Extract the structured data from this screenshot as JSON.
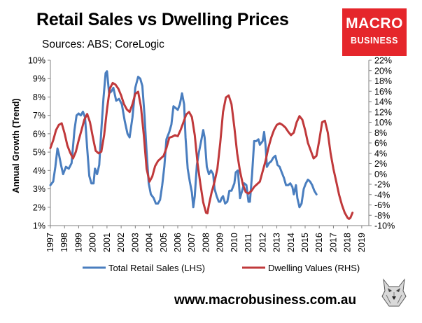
{
  "header": {
    "title": "Retail Sales vs Dwelling Prices",
    "subtitle": "Sources: ABS; CoreLogic"
  },
  "logo": {
    "line1": "MACRO",
    "line2": "BUSINESS",
    "color": "#e5262b"
  },
  "footer": {
    "url": "www.macrobusiness.com.au"
  },
  "chart_data": {
    "type": "line",
    "ylabel": "Annual Growth (Trend)",
    "y_left": {
      "lim": [
        1,
        10
      ],
      "ticks": [
        "1%",
        "2%",
        "3%",
        "4%",
        "5%",
        "6%",
        "7%",
        "8%",
        "9%",
        "10%"
      ]
    },
    "y_right": {
      "lim": [
        -10,
        22
      ],
      "ticks": [
        "-10%",
        "-8%",
        "-6%",
        "-4%",
        "-2%",
        "0%",
        "2%",
        "4%",
        "6%",
        "8%",
        "10%",
        "12%",
        "14%",
        "16%",
        "18%",
        "20%",
        "22%"
      ]
    },
    "x_ticks": [
      "1997",
      "1998",
      "1999",
      "2000",
      "2001",
      "2002",
      "2003",
      "2004",
      "2005",
      "2006",
      "2007",
      "2008",
      "2009",
      "2010",
      "2011",
      "2012",
      "2013",
      "2014",
      "2015",
      "2016",
      "2017",
      "2018",
      "2019"
    ],
    "grid": "none",
    "legend": "bottom",
    "series": [
      {
        "name": "Total Retail Sales (LHS)",
        "axis": "left",
        "color": "#4a7ebf",
        "points": [
          [
            1997.0,
            3.2
          ],
          [
            1997.2,
            3.4
          ],
          [
            1997.35,
            4.2
          ],
          [
            1997.5,
            5.2
          ],
          [
            1997.6,
            4.9
          ],
          [
            1997.75,
            4.3
          ],
          [
            1997.9,
            3.8
          ],
          [
            1998.1,
            4.2
          ],
          [
            1998.3,
            4.1
          ],
          [
            1998.5,
            4.4
          ],
          [
            1998.7,
            6.2
          ],
          [
            1998.85,
            7.0
          ],
          [
            1999.0,
            7.1
          ],
          [
            1999.15,
            7.0
          ],
          [
            1999.3,
            7.2
          ],
          [
            1999.45,
            6.9
          ],
          [
            1999.6,
            5.2
          ],
          [
            1999.75,
            3.7
          ],
          [
            1999.9,
            3.3
          ],
          [
            2000.05,
            3.3
          ],
          [
            2000.15,
            4.1
          ],
          [
            2000.3,
            3.8
          ],
          [
            2000.45,
            4.3
          ],
          [
            2000.6,
            6.2
          ],
          [
            2000.75,
            7.9
          ],
          [
            2000.9,
            9.3
          ],
          [
            2001.0,
            9.4
          ],
          [
            2001.15,
            8.2
          ],
          [
            2001.3,
            8.3
          ],
          [
            2001.45,
            8.5
          ],
          [
            2001.65,
            7.8
          ],
          [
            2001.85,
            7.9
          ],
          [
            2002.05,
            7.6
          ],
          [
            2002.25,
            6.7
          ],
          [
            2002.45,
            6.0
          ],
          [
            2002.6,
            5.8
          ],
          [
            2002.8,
            6.9
          ],
          [
            2003.0,
            8.5
          ],
          [
            2003.2,
            9.1
          ],
          [
            2003.35,
            9.0
          ],
          [
            2003.5,
            8.6
          ],
          [
            2003.65,
            7.0
          ],
          [
            2003.8,
            5.0
          ],
          [
            2003.95,
            3.3
          ],
          [
            2004.1,
            2.7
          ],
          [
            2004.3,
            2.5
          ],
          [
            2004.45,
            2.2
          ],
          [
            2004.6,
            2.2
          ],
          [
            2004.75,
            2.4
          ],
          [
            2004.9,
            3.2
          ],
          [
            2005.05,
            4.2
          ],
          [
            2005.2,
            5.7
          ],
          [
            2005.4,
            6.1
          ],
          [
            2005.55,
            6.5
          ],
          [
            2005.7,
            7.5
          ],
          [
            2005.85,
            7.4
          ],
          [
            2006.0,
            7.3
          ],
          [
            2006.15,
            7.6
          ],
          [
            2006.3,
            8.2
          ],
          [
            2006.45,
            7.6
          ],
          [
            2006.55,
            5.8
          ],
          [
            2006.7,
            4.1
          ],
          [
            2006.85,
            3.4
          ],
          [
            2007.0,
            2.8
          ],
          [
            2007.1,
            2.0
          ],
          [
            2007.2,
            2.6
          ],
          [
            2007.35,
            4.3
          ],
          [
            2007.5,
            5.0
          ],
          [
            2007.65,
            5.6
          ],
          [
            2007.8,
            6.2
          ],
          [
            2007.9,
            5.8
          ],
          [
            2008.05,
            4.2
          ],
          [
            2008.2,
            3.8
          ],
          [
            2008.35,
            4.0
          ],
          [
            2008.5,
            3.8
          ],
          [
            2008.6,
            3.0
          ],
          [
            2008.75,
            2.6
          ],
          [
            2008.9,
            2.3
          ],
          [
            2009.0,
            2.3
          ],
          [
            2009.1,
            2.5
          ],
          [
            2009.2,
            2.6
          ],
          [
            2009.35,
            2.2
          ],
          [
            2009.5,
            2.3
          ],
          [
            2009.65,
            2.9
          ],
          [
            2009.8,
            2.9
          ],
          [
            2010.0,
            3.3
          ],
          [
            2010.1,
            3.9
          ],
          [
            2010.25,
            4.0
          ],
          [
            2010.4,
            2.5
          ],
          [
            2010.55,
            2.9
          ],
          [
            2010.7,
            3.3
          ],
          [
            2010.85,
            3.2
          ],
          [
            2011.0,
            2.3
          ],
          [
            2011.1,
            2.3
          ],
          [
            2011.25,
            3.8
          ],
          [
            2011.4,
            5.6
          ],
          [
            2011.55,
            5.6
          ],
          [
            2011.7,
            5.7
          ],
          [
            2011.8,
            5.4
          ],
          [
            2011.9,
            5.5
          ],
          [
            2012.0,
            5.6
          ],
          [
            2012.1,
            6.1
          ],
          [
            2012.2,
            5.4
          ],
          [
            2012.3,
            4.2
          ],
          [
            2012.45,
            4.4
          ],
          [
            2012.6,
            4.5
          ],
          [
            2012.75,
            4.7
          ],
          [
            2012.9,
            4.8
          ],
          [
            2013.05,
            4.3
          ],
          [
            2013.2,
            4.2
          ],
          [
            2013.35,
            3.9
          ],
          [
            2013.5,
            3.6
          ],
          [
            2013.65,
            3.2
          ],
          [
            2013.8,
            3.2
          ],
          [
            2013.95,
            3.3
          ],
          [
            2014.1,
            3.1
          ],
          [
            2014.2,
            2.7
          ],
          [
            2014.35,
            3.2
          ],
          [
            2014.45,
            2.5
          ],
          [
            2014.6,
            2.0
          ],
          [
            2014.75,
            2.2
          ],
          [
            2014.9,
            3.0
          ],
          [
            2015.05,
            3.3
          ],
          [
            2015.2,
            3.5
          ],
          [
            2015.35,
            3.4
          ],
          [
            2015.5,
            3.2
          ],
          [
            2015.65,
            2.9
          ],
          [
            2015.8,
            2.7
          ]
        ]
      },
      {
        "name": "Dwelling Values (RHS)",
        "axis": "right",
        "color": "#c0393b",
        "points": [
          [
            1997.0,
            5.0
          ],
          [
            1997.2,
            6.5
          ],
          [
            1997.4,
            8.5
          ],
          [
            1997.6,
            9.5
          ],
          [
            1997.8,
            9.8
          ],
          [
            1998.0,
            7.9
          ],
          [
            1998.2,
            5.5
          ],
          [
            1998.4,
            4.1
          ],
          [
            1998.6,
            3.0
          ],
          [
            1998.8,
            4.3
          ],
          [
            1999.0,
            6.5
          ],
          [
            1999.2,
            8.5
          ],
          [
            1999.4,
            10.5
          ],
          [
            1999.6,
            11.6
          ],
          [
            1999.8,
            10.0
          ],
          [
            2000.0,
            7.1
          ],
          [
            2000.2,
            4.5
          ],
          [
            2000.4,
            4.0
          ],
          [
            2000.6,
            4.3
          ],
          [
            2000.8,
            7.5
          ],
          [
            2001.0,
            12.5
          ],
          [
            2001.2,
            16.5
          ],
          [
            2001.4,
            17.6
          ],
          [
            2001.6,
            17.3
          ],
          [
            2001.8,
            16.5
          ],
          [
            2002.0,
            15.2
          ],
          [
            2002.2,
            13.5
          ],
          [
            2002.4,
            12.5
          ],
          [
            2002.6,
            12.0
          ],
          [
            2002.8,
            13.5
          ],
          [
            2003.0,
            15.5
          ],
          [
            2003.2,
            15.9
          ],
          [
            2003.4,
            13.0
          ],
          [
            2003.6,
            7.5
          ],
          [
            2003.8,
            1.0
          ],
          [
            2004.0,
            -1.5
          ],
          [
            2004.2,
            -0.5
          ],
          [
            2004.4,
            1.5
          ],
          [
            2004.6,
            2.5
          ],
          [
            2004.8,
            3.0
          ],
          [
            2005.0,
            3.5
          ],
          [
            2005.2,
            5.0
          ],
          [
            2005.4,
            7.0
          ],
          [
            2005.6,
            7.2
          ],
          [
            2005.8,
            7.5
          ],
          [
            2006.0,
            7.3
          ],
          [
            2006.2,
            8.5
          ],
          [
            2006.4,
            10.0
          ],
          [
            2006.6,
            11.5
          ],
          [
            2006.8,
            12.0
          ],
          [
            2007.0,
            11.0
          ],
          [
            2007.2,
            7.5
          ],
          [
            2007.4,
            2.0
          ],
          [
            2007.6,
            -2.0
          ],
          [
            2007.8,
            -5.5
          ],
          [
            2008.0,
            -7.5
          ],
          [
            2008.1,
            -7.6
          ],
          [
            2008.2,
            -6.0
          ],
          [
            2008.4,
            -3.5
          ],
          [
            2008.6,
            -1.5
          ],
          [
            2008.8,
            1.0
          ],
          [
            2009.0,
            6.0
          ],
          [
            2009.2,
            12.0
          ],
          [
            2009.4,
            14.8
          ],
          [
            2009.6,
            15.2
          ],
          [
            2009.8,
            13.5
          ],
          [
            2010.0,
            9.0
          ],
          [
            2010.2,
            4.0
          ],
          [
            2010.4,
            0.5
          ],
          [
            2010.6,
            -2.0
          ],
          [
            2010.8,
            -3.5
          ],
          [
            2011.0,
            -3.8
          ],
          [
            2011.2,
            -3.3
          ],
          [
            2011.4,
            -2.5
          ],
          [
            2011.6,
            -2.0
          ],
          [
            2011.8,
            -1.5
          ],
          [
            2012.0,
            0.5
          ],
          [
            2012.2,
            2.5
          ],
          [
            2012.4,
            5.0
          ],
          [
            2012.6,
            7.0
          ],
          [
            2012.8,
            8.5
          ],
          [
            2013.0,
            9.5
          ],
          [
            2013.2,
            9.8
          ],
          [
            2013.4,
            9.5
          ],
          [
            2013.6,
            9.0
          ],
          [
            2013.8,
            8.2
          ],
          [
            2014.0,
            7.5
          ],
          [
            2014.2,
            8.0
          ],
          [
            2014.4,
            10.0
          ],
          [
            2014.6,
            11.2
          ],
          [
            2014.8,
            10.5
          ],
          [
            2015.0,
            8.5
          ],
          [
            2015.2,
            6.0
          ],
          [
            2015.4,
            4.5
          ],
          [
            2015.6,
            3.0
          ],
          [
            2015.8,
            3.5
          ],
          [
            2016.0,
            6.5
          ],
          [
            2016.2,
            10.0
          ],
          [
            2016.4,
            10.3
          ],
          [
            2016.6,
            8.0
          ],
          [
            2016.8,
            4.0
          ],
          [
            2017.0,
            1.0
          ],
          [
            2017.2,
            -1.5
          ],
          [
            2017.4,
            -4.0
          ],
          [
            2017.6,
            -6.0
          ],
          [
            2017.8,
            -7.5
          ],
          [
            2018.0,
            -8.5
          ],
          [
            2018.1,
            -8.7
          ],
          [
            2018.2,
            -8.5
          ],
          [
            2018.35,
            -7.5
          ]
        ]
      }
    ]
  }
}
